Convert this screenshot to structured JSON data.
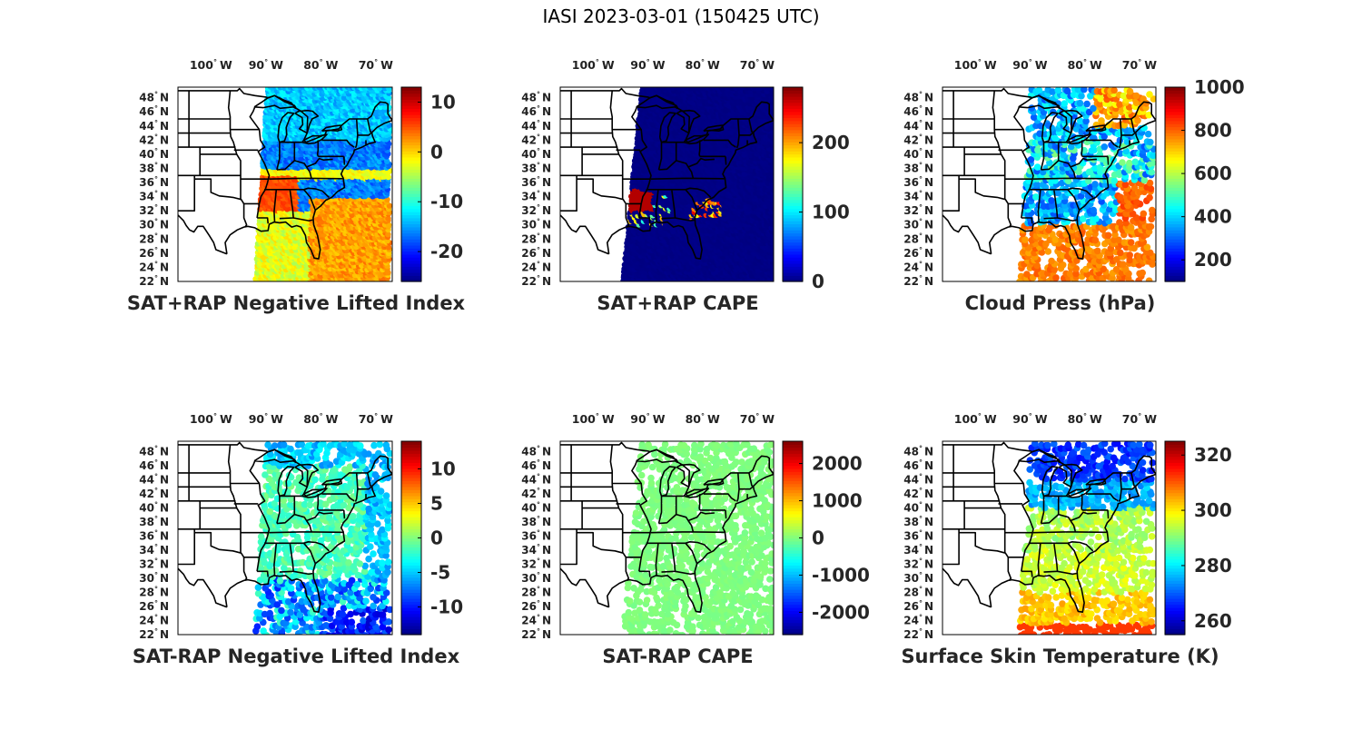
{
  "figure": {
    "title": "IASI 2023-03-01 (150425 UTC)"
  },
  "map_axes": {
    "lon_ticks": [
      "100",
      "90",
      "80",
      "70"
    ],
    "lon_suffix": "W",
    "lat_ticks": [
      "48",
      "46",
      "44",
      "42",
      "40",
      "38",
      "36",
      "34",
      "32",
      "30",
      "28",
      "26",
      "24",
      "22"
    ],
    "lat_suffix": "N",
    "degree_symbol": "°",
    "lon_range": [
      -106,
      -67
    ],
    "lat_range": [
      22,
      49.5
    ]
  },
  "colormap": "jet",
  "panels": [
    {
      "id": "p1",
      "title": "SAT+RAP Negative Lifted Index",
      "cbar_range": [
        -26,
        13
      ],
      "cbar_ticks": [
        10,
        0,
        -10,
        -20
      ]
    },
    {
      "id": "p2",
      "title": "SAT+RAP CAPE",
      "cbar_range": [
        0,
        280
      ],
      "cbar_ticks": [
        200,
        100,
        0
      ]
    },
    {
      "id": "p3",
      "title": "Cloud Press (hPa)",
      "cbar_range": [
        100,
        1000
      ],
      "cbar_ticks": [
        1000,
        800,
        600,
        400,
        200
      ]
    },
    {
      "id": "p4",
      "title": "SAT-RAP Negative Lifted Index",
      "cbar_range": [
        -14,
        14
      ],
      "cbar_ticks": [
        10,
        5,
        0,
        -5,
        -10
      ]
    },
    {
      "id": "p5",
      "title": "SAT-RAP CAPE",
      "cbar_range": [
        -2600,
        2600
      ],
      "cbar_ticks": [
        2000,
        1000,
        0,
        -1000,
        -2000
      ]
    },
    {
      "id": "p6",
      "title": "Surface Skin Temperature (K)",
      "cbar_range": [
        255,
        325
      ],
      "cbar_ticks": [
        320,
        300,
        280,
        260
      ]
    }
  ]
}
